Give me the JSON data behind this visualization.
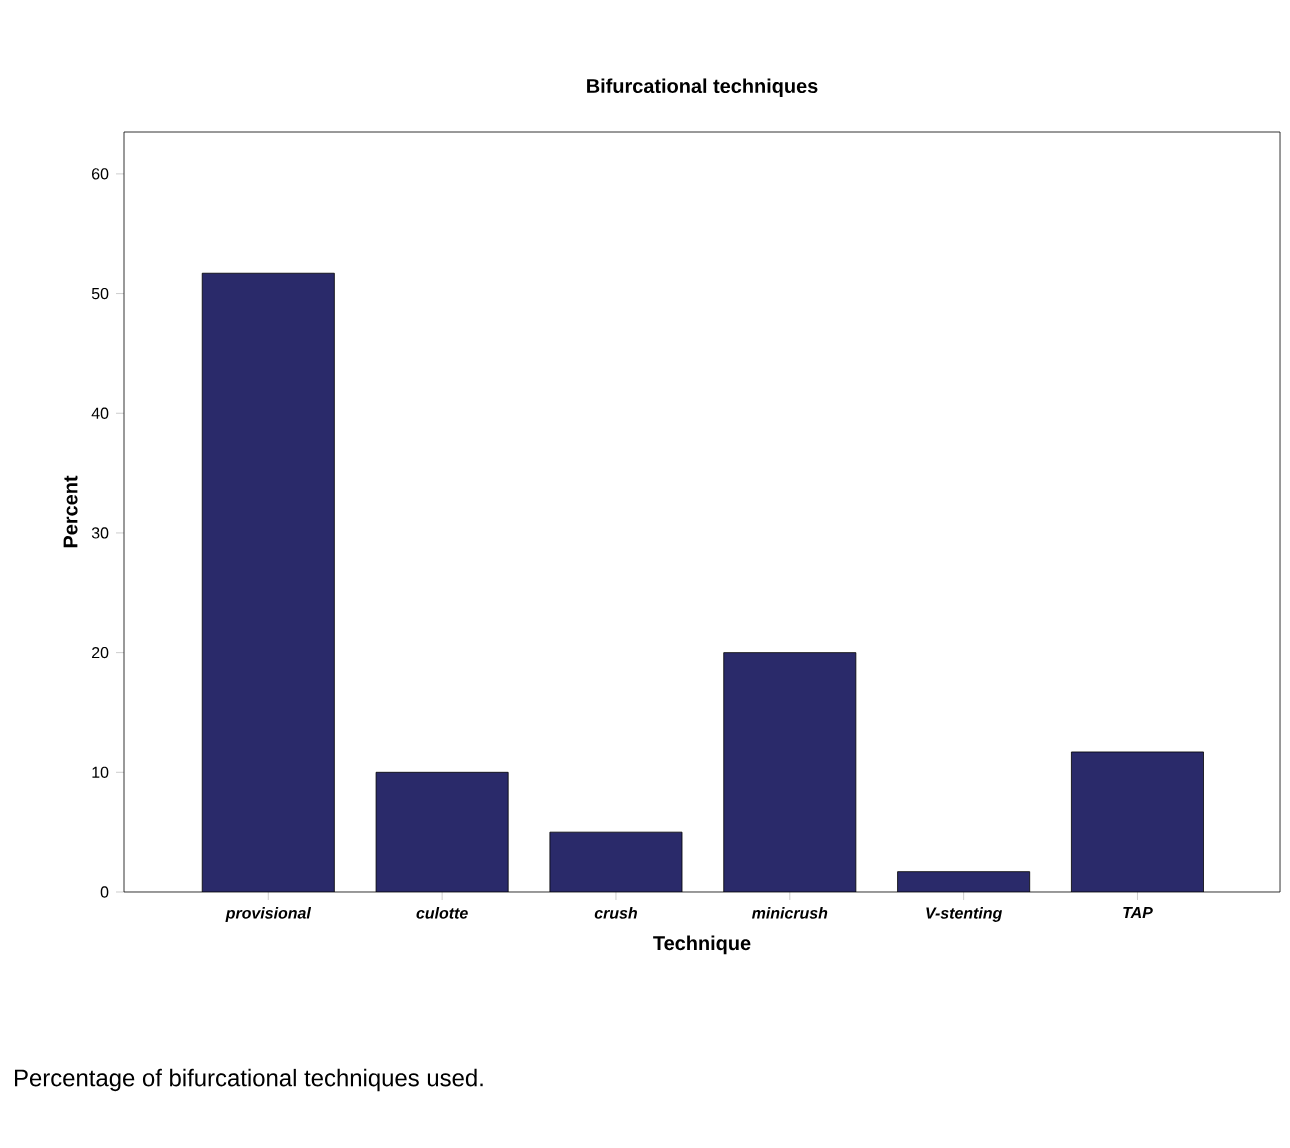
{
  "chart_data": {
    "type": "bar",
    "title": "Bifurcational techniques",
    "xlabel": "Technique",
    "ylabel": "Percent",
    "categories": [
      "provisional",
      "culotte",
      "crush",
      "minicrush",
      "V-stenting",
      "TAP"
    ],
    "values": [
      51.7,
      10,
      5,
      20,
      1.7,
      11.7
    ],
    "color": "#2a2a6a",
    "ylim": [
      0,
      63.5
    ],
    "yticks": [
      0,
      10,
      20,
      30,
      40,
      50,
      60
    ],
    "grid": false,
    "annotations": [
      "Percentage of bifurcational techniques used."
    ]
  }
}
